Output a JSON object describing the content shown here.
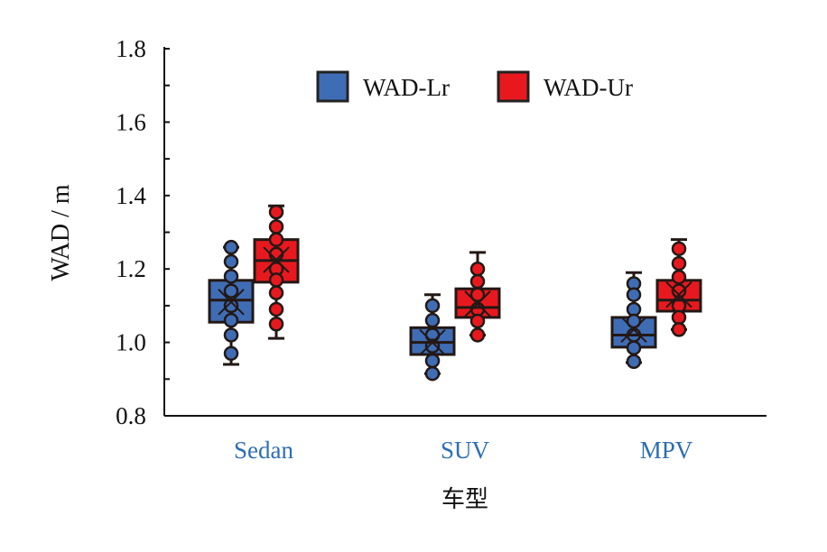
{
  "chart_data": {
    "type": "box",
    "title": "",
    "xlabel": "车型",
    "ylabel": "WAD / m",
    "ylim": [
      0.8,
      1.8
    ],
    "yticks": [
      "0.8",
      "1.0",
      "1.2",
      "1.4",
      "1.6",
      "1.8"
    ],
    "categories": [
      "Sedan",
      "SUV",
      "MPV"
    ],
    "legend_position": "top-center",
    "series": [
      {
        "name": "WAD-Lr",
        "color": "#3f6db5",
        "boxes": [
          {
            "min": 0.94,
            "q1": 1.055,
            "median": 1.115,
            "q3": 1.169,
            "max": 1.259,
            "mean": 1.11,
            "points": [
              1.259,
              1.22,
              1.18,
              1.14,
              1.1,
              1.06,
              1.02,
              0.97
            ]
          },
          {
            "min": 0.915,
            "q1": 0.967,
            "median": 1.0,
            "q3": 1.04,
            "max": 1.13,
            "mean": 1.0,
            "points": [
              1.1,
              1.06,
              1.02,
              0.99,
              0.95,
              0.915
            ]
          },
          {
            "min": 0.945,
            "q1": 0.987,
            "median": 1.02,
            "q3": 1.068,
            "max": 1.19,
            "mean": 1.035,
            "points": [
              1.16,
              1.13,
              1.09,
              1.058,
              1.02,
              0.985,
              0.948
            ]
          }
        ]
      },
      {
        "name": "WAD-Ur",
        "color": "#e8191e",
        "boxes": [
          {
            "min": 1.011,
            "q1": 1.164,
            "median": 1.223,
            "q3": 1.28,
            "max": 1.372,
            "mean": 1.225,
            "points": [
              1.355,
              1.315,
              1.28,
              1.24,
              1.2,
              1.17,
              1.135,
              1.09,
              1.05
            ]
          },
          {
            "min": 1.02,
            "q1": 1.068,
            "median": 1.095,
            "q3": 1.146,
            "max": 1.245,
            "mean": 1.105,
            "points": [
              1.2,
              1.166,
              1.13,
              1.09,
              1.058,
              1.02
            ]
          },
          {
            "min": 1.035,
            "q1": 1.085,
            "median": 1.115,
            "q3": 1.169,
            "max": 1.28,
            "mean": 1.13,
            "points": [
              1.255,
              1.215,
              1.178,
              1.14,
              1.1,
              1.068,
              1.035
            ]
          }
        ]
      }
    ]
  }
}
